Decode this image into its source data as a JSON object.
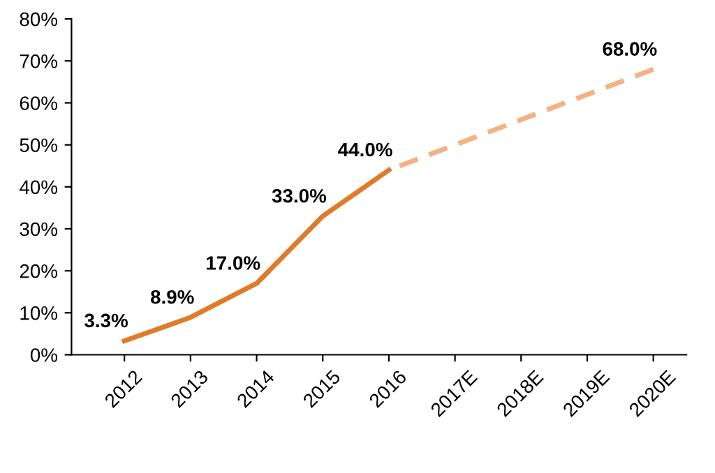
{
  "chart_data": {
    "type": "line",
    "categories": [
      "2012",
      "2013",
      "2014",
      "2015",
      "2016",
      "2017E",
      "2018E",
      "2019E",
      "2020E"
    ],
    "ylim": [
      0,
      80
    ],
    "yticks": [
      {
        "value": 0,
        "label": "0%"
      },
      {
        "value": 10,
        "label": "10%"
      },
      {
        "value": 20,
        "label": "20%"
      },
      {
        "value": 30,
        "label": "30%"
      },
      {
        "value": 40,
        "label": "40%"
      },
      {
        "value": 50,
        "label": "50%"
      },
      {
        "value": 60,
        "label": "60%"
      },
      {
        "value": 70,
        "label": "70%"
      },
      {
        "value": 80,
        "label": "80%"
      }
    ],
    "grid": false,
    "legend": false,
    "marker": "none",
    "series": [
      {
        "color": "#e07b2a",
        "line_style": "solid",
        "values": [
          3.3,
          8.9,
          17.0,
          33.0,
          44.0,
          null,
          null,
          null,
          null
        ],
        "value_labels": [
          "3.3%",
          "8.9%",
          "17.0%",
          "33.0%",
          "44.0%",
          null,
          null,
          null,
          null
        ]
      },
      {
        "color": "#f4b183",
        "line_style": "dashed",
        "values": [
          null,
          null,
          null,
          null,
          44.0,
          50,
          56,
          62,
          68.0
        ],
        "value_labels": [
          null,
          null,
          null,
          null,
          null,
          null,
          null,
          null,
          "68.0%"
        ]
      }
    ]
  }
}
